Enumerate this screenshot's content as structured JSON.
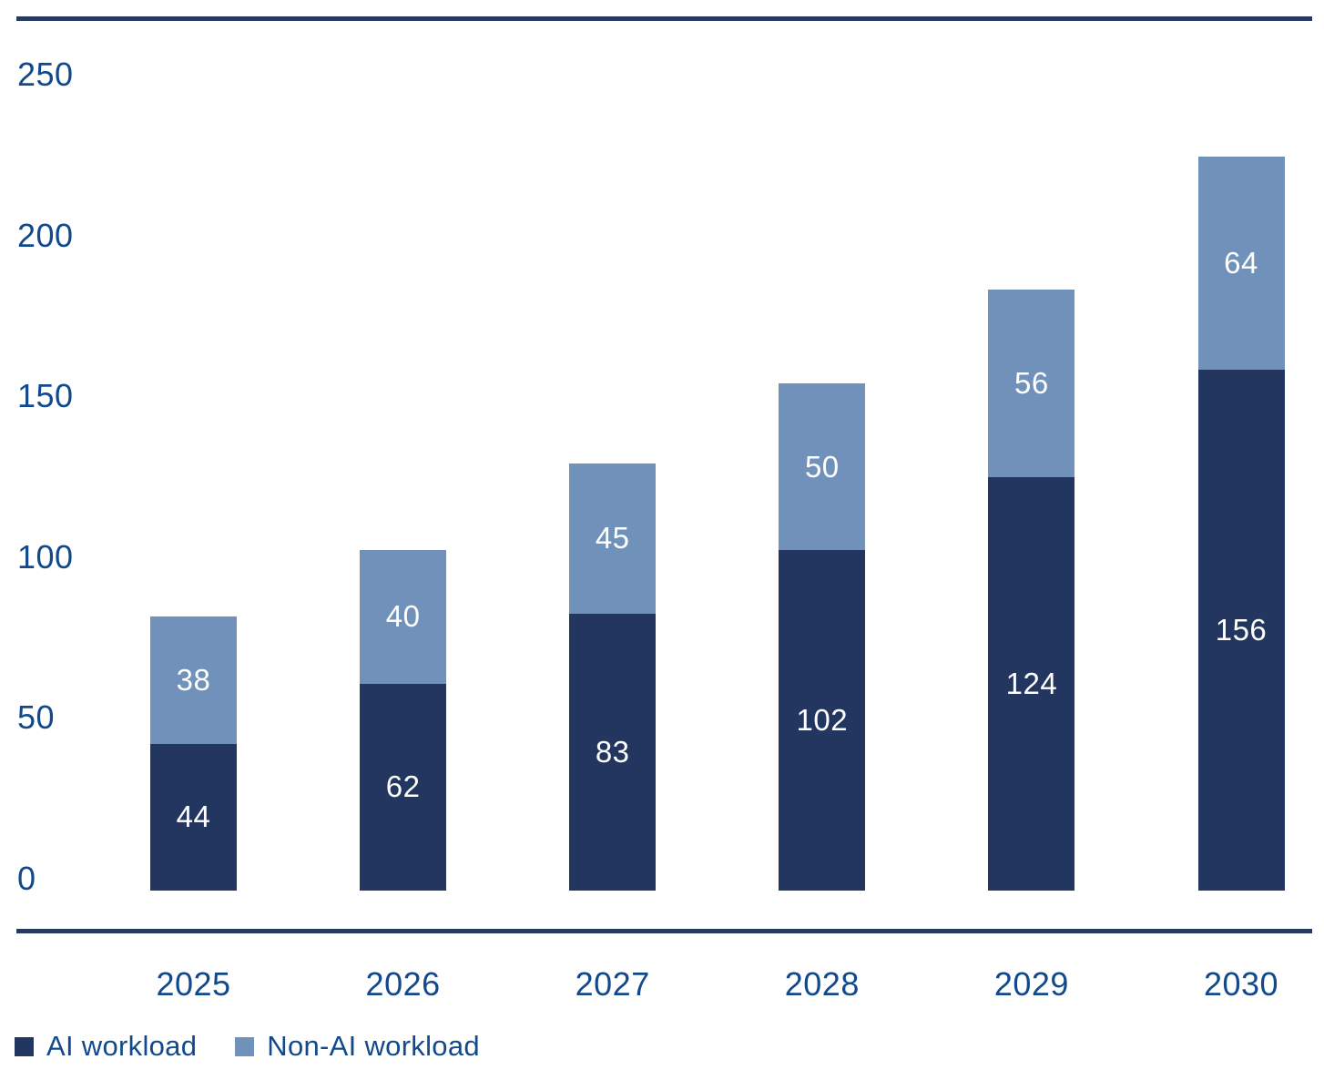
{
  "colors": {
    "ai_series": "#22365f",
    "non_ai_series": "#7091b9",
    "axis_text": "#12498c",
    "rule": "#253a5e",
    "value_label": "#ffffff",
    "background": "#ffffff"
  },
  "chart_data": {
    "type": "bar",
    "stacked": true,
    "title": "",
    "xlabel": "",
    "ylabel": "",
    "categories": [
      "2025",
      "2026",
      "2027",
      "2028",
      "2029",
      "2030"
    ],
    "series": [
      {
        "name": "AI workload",
        "color_key": "ai_series",
        "values": [
          44,
          62,
          83,
          102,
          124,
          156
        ]
      },
      {
        "name": "Non-AI workload",
        "color_key": "non_ai_series",
        "values": [
          38,
          40,
          45,
          50,
          56,
          64
        ]
      }
    ],
    "stack_totals": [
      82,
      102,
      128,
      152,
      180,
      220
    ],
    "ylim": [
      0,
      250
    ],
    "yticks": [
      0,
      50,
      100,
      150,
      200,
      250
    ],
    "grid": false,
    "data_labels": "inside-center-white",
    "legend_position": "bottom-left"
  },
  "legend": {
    "items": [
      {
        "label": "AI workload",
        "color_key": "ai_series"
      },
      {
        "label": "Non-AI workload",
        "color_key": "non_ai_series"
      }
    ]
  }
}
